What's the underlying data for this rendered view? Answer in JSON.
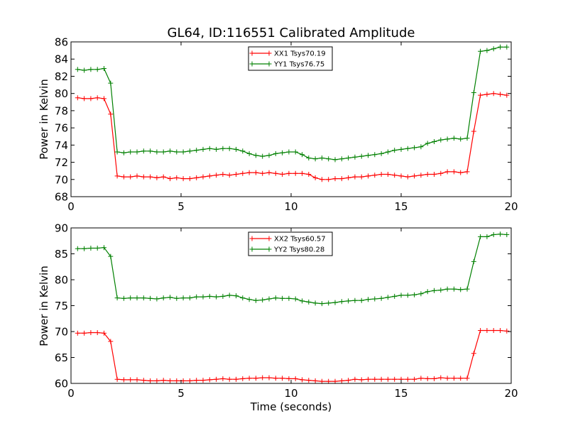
{
  "chart_data": [
    {
      "type": "line",
      "title": "GL64, ID:116551 Calibrated Amplitude",
      "xlabel": "",
      "ylabel": "Power in Kelvin",
      "xlim": [
        0,
        20
      ],
      "ylim": [
        68,
        86
      ],
      "xticks": [
        0,
        5,
        10,
        15,
        20
      ],
      "yticks": [
        68,
        70,
        72,
        74,
        76,
        78,
        80,
        82,
        84,
        86
      ],
      "legend_position": "top-center",
      "x": [
        0.3,
        0.6,
        0.9,
        1.2,
        1.5,
        1.8,
        2.1,
        2.4,
        2.7,
        3.0,
        3.3,
        3.6,
        3.9,
        4.2,
        4.5,
        4.8,
        5.1,
        5.4,
        5.7,
        6.0,
        6.3,
        6.6,
        6.9,
        7.2,
        7.5,
        7.8,
        8.1,
        8.4,
        8.7,
        9.0,
        9.3,
        9.6,
        9.9,
        10.2,
        10.5,
        10.8,
        11.1,
        11.4,
        11.7,
        12.0,
        12.3,
        12.6,
        12.9,
        13.2,
        13.5,
        13.8,
        14.1,
        14.4,
        14.7,
        15.0,
        15.3,
        15.6,
        15.9,
        16.2,
        16.5,
        16.8,
        17.1,
        17.4,
        17.7,
        18.0,
        18.3,
        18.6,
        18.9,
        19.2,
        19.5,
        19.8
      ],
      "series": [
        {
          "name": "XX1 Tsys70.19",
          "color": "#ff0000",
          "values": [
            79.5,
            79.4,
            79.4,
            79.5,
            79.4,
            77.6,
            70.4,
            70.3,
            70.3,
            70.4,
            70.3,
            70.3,
            70.2,
            70.3,
            70.1,
            70.2,
            70.1,
            70.1,
            70.2,
            70.3,
            70.4,
            70.5,
            70.6,
            70.5,
            70.6,
            70.7,
            70.8,
            70.8,
            70.7,
            70.8,
            70.7,
            70.6,
            70.7,
            70.7,
            70.7,
            70.6,
            70.2,
            70.0,
            70.0,
            70.1,
            70.1,
            70.2,
            70.3,
            70.3,
            70.4,
            70.5,
            70.6,
            70.6,
            70.5,
            70.4,
            70.3,
            70.4,
            70.5,
            70.6,
            70.6,
            70.7,
            70.9,
            70.9,
            70.8,
            70.9,
            75.6,
            79.8,
            79.9,
            80.0,
            79.9,
            79.8
          ]
        },
        {
          "name": "YY1 Tsys76.75",
          "color": "#008000",
          "values": [
            82.8,
            82.7,
            82.8,
            82.8,
            82.9,
            81.2,
            73.2,
            73.1,
            73.2,
            73.2,
            73.3,
            73.3,
            73.2,
            73.2,
            73.3,
            73.2,
            73.2,
            73.3,
            73.4,
            73.5,
            73.6,
            73.5,
            73.6,
            73.6,
            73.5,
            73.3,
            73.0,
            72.8,
            72.7,
            72.8,
            73.0,
            73.1,
            73.2,
            73.2,
            72.9,
            72.5,
            72.4,
            72.5,
            72.4,
            72.3,
            72.4,
            72.5,
            72.6,
            72.7,
            72.8,
            72.9,
            73.0,
            73.2,
            73.4,
            73.5,
            73.6,
            73.7,
            73.8,
            74.2,
            74.4,
            74.6,
            74.7,
            74.8,
            74.7,
            74.8,
            80.1,
            84.9,
            85.0,
            85.2,
            85.4,
            85.4
          ]
        }
      ]
    },
    {
      "type": "line",
      "title": "",
      "xlabel": "Time (seconds)",
      "ylabel": "Power in Kelvin",
      "xlim": [
        0,
        20
      ],
      "ylim": [
        60,
        90
      ],
      "xticks": [
        0,
        5,
        10,
        15,
        20
      ],
      "yticks": [
        60,
        65,
        70,
        75,
        80,
        85,
        90
      ],
      "legend_position": "top-center",
      "x": [
        0.3,
        0.6,
        0.9,
        1.2,
        1.5,
        1.8,
        2.1,
        2.4,
        2.7,
        3.0,
        3.3,
        3.6,
        3.9,
        4.2,
        4.5,
        4.8,
        5.1,
        5.4,
        5.7,
        6.0,
        6.3,
        6.6,
        6.9,
        7.2,
        7.5,
        7.8,
        8.1,
        8.4,
        8.7,
        9.0,
        9.3,
        9.6,
        9.9,
        10.2,
        10.5,
        10.8,
        11.1,
        11.4,
        11.7,
        12.0,
        12.3,
        12.6,
        12.9,
        13.2,
        13.5,
        13.8,
        14.1,
        14.4,
        14.7,
        15.0,
        15.3,
        15.6,
        15.9,
        16.2,
        16.5,
        16.8,
        17.1,
        17.4,
        17.7,
        18.0,
        18.3,
        18.6,
        18.9,
        19.2,
        19.5,
        19.8
      ],
      "series": [
        {
          "name": "XX2 Tsys60.57",
          "color": "#ff0000",
          "values": [
            69.7,
            69.7,
            69.8,
            69.8,
            69.7,
            68.1,
            60.8,
            60.7,
            60.7,
            60.7,
            60.6,
            60.5,
            60.5,
            60.6,
            60.5,
            60.5,
            60.5,
            60.5,
            60.6,
            60.6,
            60.7,
            60.8,
            60.9,
            60.8,
            60.8,
            60.9,
            61.0,
            61.0,
            61.1,
            61.1,
            61.0,
            61.0,
            60.9,
            60.9,
            60.7,
            60.6,
            60.5,
            60.4,
            60.4,
            60.4,
            60.5,
            60.6,
            60.8,
            60.7,
            60.8,
            60.8,
            60.8,
            60.8,
            60.8,
            60.8,
            60.8,
            60.8,
            61.0,
            60.9,
            60.9,
            61.1,
            61.0,
            61.0,
            61.0,
            61.0,
            65.8,
            70.2,
            70.2,
            70.2,
            70.2,
            70.1
          ]
        },
        {
          "name": "YY2 Tsys80.28",
          "color": "#008000",
          "values": [
            86.0,
            86.0,
            86.1,
            86.1,
            86.2,
            84.5,
            76.5,
            76.4,
            76.5,
            76.5,
            76.5,
            76.4,
            76.3,
            76.5,
            76.6,
            76.4,
            76.5,
            76.5,
            76.7,
            76.7,
            76.8,
            76.7,
            76.8,
            77.0,
            76.9,
            76.5,
            76.2,
            76.0,
            76.1,
            76.3,
            76.5,
            76.4,
            76.4,
            76.3,
            75.9,
            75.7,
            75.5,
            75.4,
            75.5,
            75.6,
            75.8,
            75.9,
            76.0,
            76.0,
            76.2,
            76.3,
            76.4,
            76.6,
            76.8,
            77.0,
            77.0,
            77.1,
            77.3,
            77.7,
            77.9,
            78.0,
            78.2,
            78.2,
            78.1,
            78.2,
            83.5,
            88.3,
            88.3,
            88.7,
            88.8,
            88.7
          ]
        }
      ]
    }
  ]
}
